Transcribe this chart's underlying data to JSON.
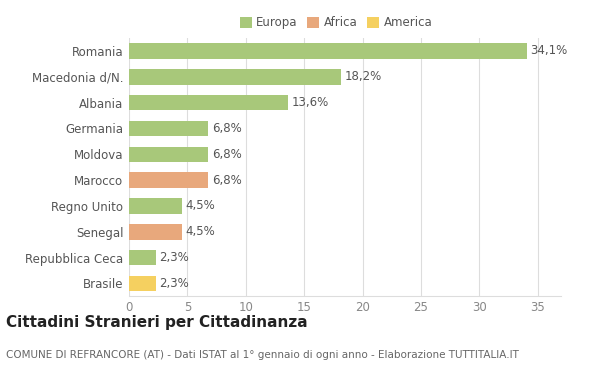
{
  "categories": [
    "Brasile",
    "Repubblica Ceca",
    "Senegal",
    "Regno Unito",
    "Marocco",
    "Moldova",
    "Germania",
    "Albania",
    "Macedonia d/N.",
    "Romania"
  ],
  "values": [
    2.3,
    2.3,
    4.5,
    4.5,
    6.8,
    6.8,
    6.8,
    13.6,
    18.2,
    34.1
  ],
  "labels": [
    "2,3%",
    "2,3%",
    "4,5%",
    "4,5%",
    "6,8%",
    "6,8%",
    "6,8%",
    "13,6%",
    "18,2%",
    "34,1%"
  ],
  "colors": [
    "#f5d060",
    "#a8c87a",
    "#e8a87c",
    "#a8c87a",
    "#e8a87c",
    "#a8c87a",
    "#a8c87a",
    "#a8c87a",
    "#a8c87a",
    "#a8c87a"
  ],
  "legend": [
    {
      "label": "Europa",
      "color": "#a8c87a"
    },
    {
      "label": "Africa",
      "color": "#e8a87c"
    },
    {
      "label": "America",
      "color": "#f5d060"
    }
  ],
  "title": "Cittadini Stranieri per Cittadinanza",
  "subtitle": "COMUNE DI REFRANCORE (AT) - Dati ISTAT al 1° gennaio di ogni anno - Elaborazione TUTTITALIA.IT",
  "xlim": [
    0,
    37
  ],
  "xticks": [
    0,
    5,
    10,
    15,
    20,
    25,
    30,
    35
  ],
  "background_color": "#ffffff",
  "grid_color": "#dddddd",
  "bar_height": 0.6,
  "label_fontsize": 8.5,
  "tick_fontsize": 8.5,
  "title_fontsize": 11,
  "subtitle_fontsize": 7.5
}
